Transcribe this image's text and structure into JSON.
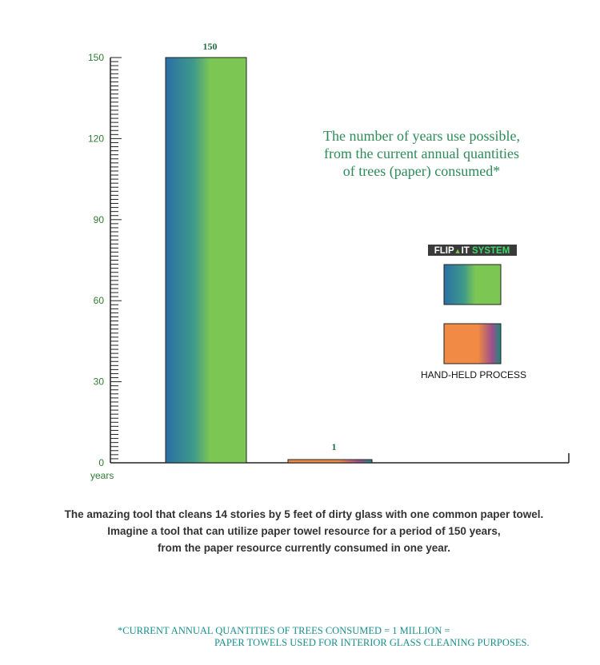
{
  "chart_data": {
    "type": "bar",
    "categories": [
      "FLIP-IT SYSTEM",
      "HAND-HELD PROCESS"
    ],
    "values": [
      150,
      1
    ],
    "data_labels": [
      "150",
      "1"
    ],
    "ylim": [
      0,
      150
    ],
    "yticks": [
      0,
      30,
      60,
      90,
      120,
      150
    ],
    "ylabel": "years",
    "title_lines": [
      "The number of  years use possible,",
      "from the current annual quantities",
      "of trees (paper) consumed*"
    ],
    "legend": {
      "placement": "right",
      "flipit_logo": {
        "part1": "FLIP",
        "part2": "IT",
        "part3": " SYSTEM"
      },
      "handheld_label": "HAND-HELD PROCESS"
    },
    "colors": {
      "flipit_gradient": [
        "#2a6fa5",
        "#3f9a8a",
        "#7cc653",
        "#7cc653"
      ],
      "handheld_gradient": [
        "#f08a44",
        "#f08a44",
        "#9b4f8e",
        "#1a8a7a"
      ],
      "tick_label": "#2e7d32",
      "title": "#2e8b57",
      "data_label": "#1e6e3e"
    },
    "grid": false
  },
  "caption": {
    "line1": "The amazing tool that cleans 14 stories by 5 feet of dirty glass with one common paper towel.",
    "line2": "Imagine a tool that can utilize paper towel resource for a period of 150 years,",
    "line3": "from the paper resource currently consumed in one year."
  },
  "footnote": {
    "line1": "*CURRENT ANNUAL QUANTITIES OF TREES  CONSUMED = 1 MILLION =",
    "line2": "PAPER TOWELS USED FOR  INTERIOR GLASS CLEANING PURPOSES."
  }
}
